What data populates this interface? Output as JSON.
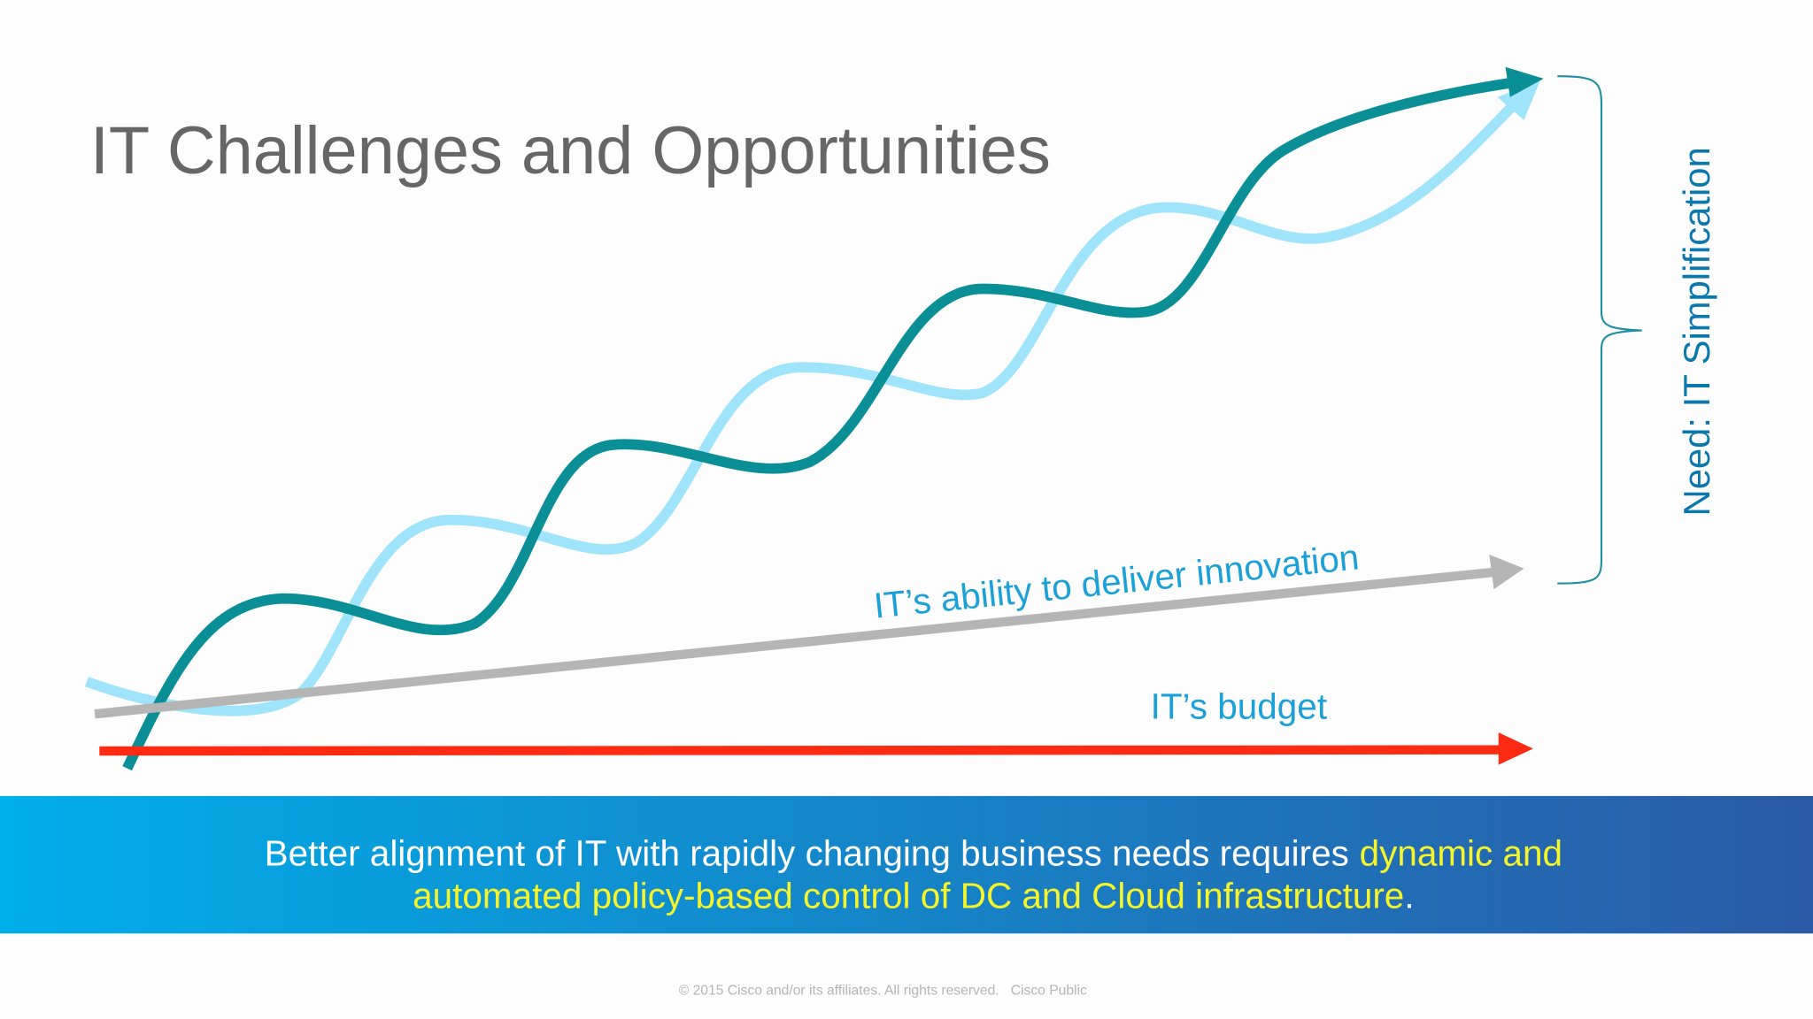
{
  "title": "IT Challenges and Opportunities",
  "labels": {
    "innovation": "IT’s ability to deliver innovation",
    "budget": "IT’s budget",
    "need": "Need: IT Simplification"
  },
  "banner": {
    "line1": {
      "plain": "Better alignment of IT with rapidly changing business needs requires",
      "highlight": "dynamic and"
    },
    "line2": {
      "highlight": "automated policy-based control of DC and Cloud infrastructure",
      "plain": "."
    }
  },
  "footer": {
    "copyright": "© 2015  Cisco and/or its affiliates. All rights reserved.",
    "classification": "Cisco Public"
  }
}
